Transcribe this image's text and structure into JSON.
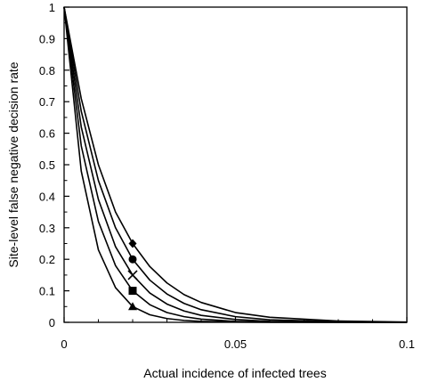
{
  "chart_data": {
    "type": "line",
    "title": "",
    "xlabel": "Actual incidence of infected trees",
    "ylabel": "Site-level false negative decision rate",
    "xlim": [
      0,
      0.1
    ],
    "ylim": [
      0,
      1
    ],
    "x_ticks": [
      {
        "value": 0,
        "label": "0"
      },
      {
        "value": 0.05,
        "label": "0.05"
      },
      {
        "value": 0.1,
        "label": "0.1"
      }
    ],
    "x_minor_ticks": [
      0.01,
      0.02,
      0.03,
      0.04,
      0.06,
      0.07,
      0.08,
      0.09
    ],
    "y_ticks": [
      {
        "value": 0,
        "label": "0"
      },
      {
        "value": 0.1,
        "label": "0.1"
      },
      {
        "value": 0.2,
        "label": "0.2"
      },
      {
        "value": 0.3,
        "label": "0.3"
      },
      {
        "value": 0.4,
        "label": "0.4"
      },
      {
        "value": 0.5,
        "label": "0.5"
      },
      {
        "value": 0.6,
        "label": "0.6"
      },
      {
        "value": 0.7,
        "label": "0.7"
      },
      {
        "value": 0.8,
        "label": "0.8"
      },
      {
        "value": 0.9,
        "label": "0.9"
      },
      {
        "value": 1,
        "label": "1"
      }
    ],
    "y_minor_ticks": [
      0.05,
      0.15,
      0.25,
      0.35,
      0.45,
      0.55,
      0.65,
      0.75,
      0.85,
      0.95
    ],
    "grid": false,
    "legend": "none",
    "line_color": "#000000",
    "series": [
      {
        "marker": "triangle",
        "x": [
          0,
          0.005,
          0.01,
          0.015,
          0.02,
          0.025,
          0.03,
          0.035,
          0.04,
          0.05,
          0.06,
          0.08,
          0.1
        ],
        "y": [
          1,
          0.48,
          0.23,
          0.11,
          0.05,
          0.024,
          0.012,
          0.006,
          0.003,
          0.001,
          0,
          0,
          0
        ],
        "marker_point": [
          0.02,
          0.05
        ]
      },
      {
        "marker": "square",
        "x": [
          0,
          0.005,
          0.01,
          0.015,
          0.02,
          0.025,
          0.03,
          0.035,
          0.04,
          0.05,
          0.06,
          0.08,
          0.1
        ],
        "y": [
          1,
          0.56,
          0.32,
          0.18,
          0.1,
          0.056,
          0.031,
          0.018,
          0.01,
          0.003,
          0.001,
          0,
          0
        ],
        "marker_point": [
          0.02,
          0.1
        ]
      },
      {
        "marker": "cross",
        "x": [
          0,
          0.005,
          0.01,
          0.015,
          0.02,
          0.025,
          0.03,
          0.035,
          0.04,
          0.05,
          0.06,
          0.08,
          0.1
        ],
        "y": [
          1,
          0.62,
          0.39,
          0.24,
          0.15,
          0.093,
          0.058,
          0.036,
          0.022,
          0.009,
          0.003,
          0.001,
          0
        ],
        "marker_point": [
          0.02,
          0.15
        ]
      },
      {
        "marker": "circle",
        "x": [
          0,
          0.005,
          0.01,
          0.015,
          0.02,
          0.025,
          0.03,
          0.035,
          0.04,
          0.05,
          0.06,
          0.08,
          0.1
        ],
        "y": [
          1,
          0.67,
          0.45,
          0.3,
          0.2,
          0.134,
          0.09,
          0.06,
          0.04,
          0.018,
          0.008,
          0.002,
          0
        ],
        "marker_point": [
          0.02,
          0.2
        ]
      },
      {
        "marker": "diamond",
        "x": [
          0,
          0.005,
          0.01,
          0.015,
          0.02,
          0.025,
          0.03,
          0.035,
          0.04,
          0.05,
          0.06,
          0.08,
          0.1
        ],
        "y": [
          1,
          0.71,
          0.5,
          0.35,
          0.25,
          0.177,
          0.125,
          0.088,
          0.063,
          0.031,
          0.016,
          0.004,
          0.001
        ],
        "marker_point": [
          0.02,
          0.25
        ]
      }
    ]
  }
}
